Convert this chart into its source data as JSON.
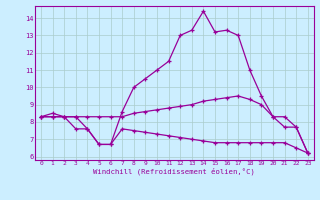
{
  "xlabel": "Windchill (Refroidissement éolien,°C)",
  "xlim": [
    -0.5,
    23.5
  ],
  "ylim": [
    5.8,
    14.7
  ],
  "yticks": [
    6,
    7,
    8,
    9,
    10,
    11,
    12,
    13,
    14
  ],
  "xticks": [
    0,
    1,
    2,
    3,
    4,
    5,
    6,
    7,
    8,
    9,
    10,
    11,
    12,
    13,
    14,
    15,
    16,
    17,
    18,
    19,
    20,
    21,
    22,
    23
  ],
  "bg_color": "#cceeff",
  "line_color": "#990099",
  "grid_color": "#aacccc",
  "line_top_x": [
    0,
    1,
    2,
    3,
    4,
    5,
    6,
    7,
    8,
    9,
    10,
    11,
    12,
    13,
    14,
    15,
    16,
    17,
    18,
    19,
    20,
    21,
    22,
    23
  ],
  "line_top_y": [
    8.3,
    8.5,
    8.3,
    8.3,
    7.6,
    6.7,
    6.7,
    8.6,
    10.0,
    10.5,
    11.0,
    11.5,
    13.0,
    13.3,
    14.4,
    13.2,
    13.3,
    13.0,
    11.0,
    9.5,
    8.3,
    7.7,
    7.7,
    6.2
  ],
  "line_mid_x": [
    0,
    1,
    2,
    3,
    4,
    5,
    6,
    7,
    8,
    9,
    10,
    11,
    12,
    13,
    14,
    15,
    16,
    17,
    18,
    19,
    20,
    21,
    22,
    23
  ],
  "line_mid_y": [
    8.3,
    8.3,
    8.3,
    8.3,
    8.3,
    8.3,
    8.3,
    8.3,
    8.5,
    8.6,
    8.7,
    8.8,
    8.9,
    9.0,
    9.2,
    9.3,
    9.4,
    9.5,
    9.3,
    9.0,
    8.3,
    8.3,
    7.7,
    6.2
  ],
  "line_bot_x": [
    0,
    1,
    2,
    3,
    4,
    5,
    6,
    7,
    8,
    9,
    10,
    11,
    12,
    13,
    14,
    15,
    16,
    17,
    18,
    19,
    20,
    21,
    22,
    23
  ],
  "line_bot_y": [
    8.3,
    8.3,
    8.3,
    7.6,
    7.6,
    6.7,
    6.7,
    7.6,
    7.5,
    7.4,
    7.3,
    7.2,
    7.1,
    7.0,
    6.9,
    6.8,
    6.8,
    6.8,
    6.8,
    6.8,
    6.8,
    6.8,
    6.5,
    6.2
  ]
}
